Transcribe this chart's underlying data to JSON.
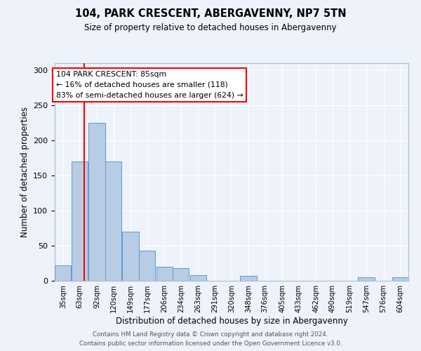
{
  "title": "104, PARK CRESCENT, ABERGAVENNY, NP7 5TN",
  "subtitle": "Size of property relative to detached houses in Abergavenny",
  "xlabel": "Distribution of detached houses by size in Abergavenny",
  "ylabel": "Number of detached properties",
  "bin_labels": [
    "35sqm",
    "63sqm",
    "92sqm",
    "120sqm",
    "149sqm",
    "177sqm",
    "206sqm",
    "234sqm",
    "263sqm",
    "291sqm",
    "320sqm",
    "348sqm",
    "376sqm",
    "405sqm",
    "433sqm",
    "462sqm",
    "490sqm",
    "519sqm",
    "547sqm",
    "576sqm",
    "604sqm"
  ],
  "bar_heights": [
    22,
    170,
    225,
    170,
    70,
    43,
    20,
    18,
    8,
    0,
    0,
    7,
    0,
    0,
    0,
    0,
    0,
    0,
    5,
    0,
    5
  ],
  "bar_color": "#b8cce4",
  "bar_edge_color": "#5b9bd5",
  "background_color": "#eef2fa",
  "grid_color": "#ffffff",
  "annotation_line1": "104 PARK CRESCENT: 85sqm",
  "annotation_line2": "← 16% of detached houses are smaller (118)",
  "annotation_line3": "83% of semi-detached houses are larger (624) →",
  "red_line_x": 85,
  "ylim": [
    0,
    310
  ],
  "yticks": [
    0,
    50,
    100,
    150,
    200,
    250,
    300
  ],
  "footer_line1": "Contains HM Land Registry data © Crown copyright and database right 2024.",
  "footer_line2": "Contains public sector information licensed under the Open Government Licence v3.0.",
  "bin_starts": [
    35,
    63,
    92,
    120,
    149,
    177,
    206,
    234,
    263,
    291,
    320,
    348,
    376,
    405,
    433,
    462,
    490,
    519,
    547,
    576,
    604
  ],
  "bin_width": 28
}
